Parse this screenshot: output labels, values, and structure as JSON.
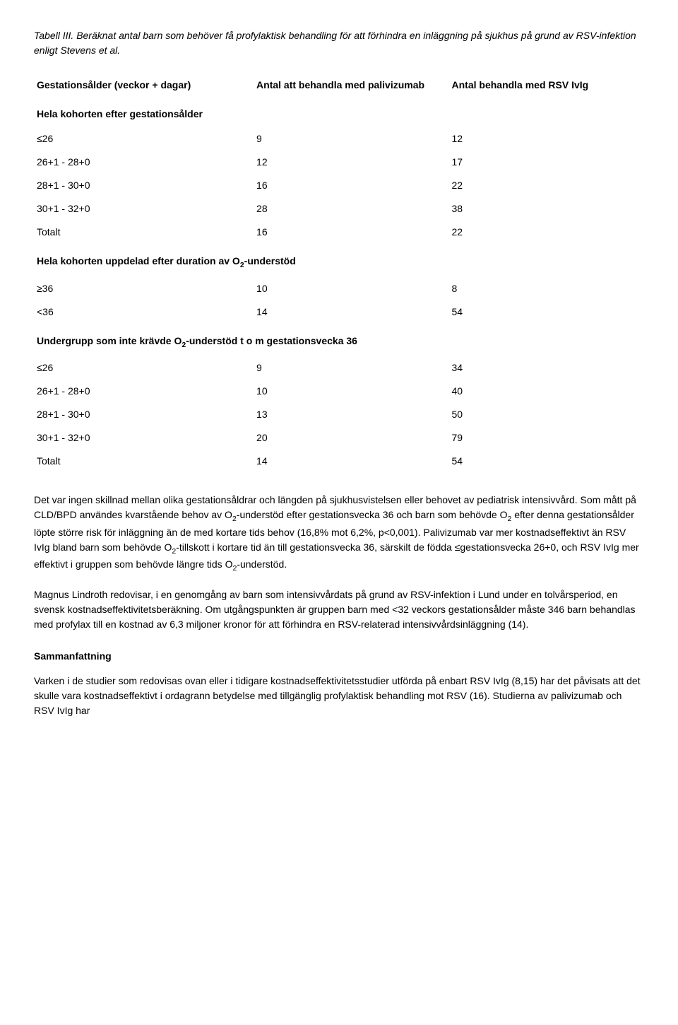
{
  "title": {
    "label": "Tabell III.",
    "text": "Beräknat antal barn som behöver få profylaktisk behandling för att förhindra en inläggning på sjukhus på grund av RSV-infektion enligt Stevens et al."
  },
  "table": {
    "headers": {
      "col1": "Gestationsålder (veckor + dagar)",
      "col2": "Antal att behandla med palivizumab",
      "col3": "Antal behandla med RSV IvIg"
    },
    "sections": [
      {
        "heading": "Hela kohorten efter gestationsålder",
        "rows": [
          {
            "c1": "≤26",
            "c2": "9",
            "c3": "12"
          },
          {
            "c1": "26+1 - 28+0",
            "c2": "12",
            "c3": "17"
          },
          {
            "c1": "28+1 - 30+0",
            "c2": "16",
            "c3": "22"
          },
          {
            "c1": "30+1 - 32+0",
            "c2": "28",
            "c3": "38"
          },
          {
            "c1": "Totalt",
            "c2": "16",
            "c3": "22"
          }
        ]
      },
      {
        "heading_html": "Hela kohorten uppdelad efter duration av O<sub>2</sub>-understöd",
        "rows": [
          {
            "c1": "≥36",
            "c2": "10",
            "c3": "8"
          },
          {
            "c1": "<36",
            "c2": "14",
            "c3": "54"
          }
        ]
      },
      {
        "heading_html": "Undergrupp som inte krävde O<sub>2</sub>-understöd t o m gestationsvecka 36",
        "rows": [
          {
            "c1": "≤26",
            "c2": "9",
            "c3": "34"
          },
          {
            "c1": "26+1 - 28+0",
            "c2": "10",
            "c3": "40"
          },
          {
            "c1": "28+1 - 30+0",
            "c2": "13",
            "c3": "50"
          },
          {
            "c1": "30+1 - 32+0",
            "c2": "20",
            "c3": "79"
          },
          {
            "c1": "Totalt",
            "c2": "14",
            "c3": "54"
          }
        ]
      }
    ]
  },
  "paragraphs": {
    "p1_html": "Det var ingen skillnad mellan olika gestationsåldrar och längden på sjukhusvistelsen eller behovet av pediatrisk intensivvård. Som mått på CLD/BPD användes kvarstående behov av O<sub>2</sub>-understöd efter gestationsvecka 36 och barn som behövde O<sub>2</sub> efter denna gestationsålder löpte större risk för inläggning än de med kortare tids behov (16,8% mot 6,2%, p&lt;0,001). Palivizumab var mer kostnadseffektivt än RSV IvIg bland barn som behövde O<sub>2</sub>-tillskott i kortare tid än till gestationsvecka 36, särskilt de födda ≤gestationsvecka 26+0, och RSV IvIg mer effektivt i gruppen som behövde längre tids O<sub>2</sub>-understöd.",
    "p2": "Magnus Lindroth redovisar, i en genomgång av barn som intensivvårdats på grund av RSV-infektion i Lund under en tolvårsperiod, en svensk kostnadseffektivitetsberäkning. Om utgångspunkten är gruppen barn med <32 veckors gestationsålder måste 346 barn behandlas med profylax till en kostnad av 6,3 miljoner kronor för att förhindra en RSV-relaterad intensivvårdsinläggning (14).",
    "summary_heading": "Sammanfattning",
    "p3": "Varken i de studier som redovisas ovan eller i tidigare kostnadseffektivitetsstudier utförda på enbart RSV IvIg (8,15) har det påvisats att det skulle vara kostnadseffektivt i ordagrann betydelse med tillgänglig profylaktisk behandling mot RSV (16). Studierna av palivizumab och RSV IvIg har"
  }
}
